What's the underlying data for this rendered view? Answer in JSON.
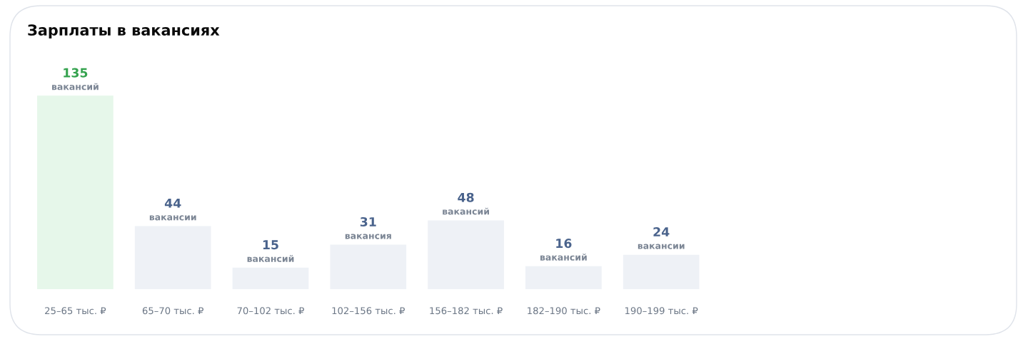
{
  "chart_data": {
    "type": "bar",
    "title": "Зарплаты в вакансиях",
    "categories": [
      "25–65 тыс. ₽",
      "65–70 тыс. ₽",
      "70–102 тыс. ₽",
      "102–156 тыс. ₽",
      "156–182 тыс. ₽",
      "182–190 тыс. ₽",
      "190–199 тыс. ₽",
      null,
      null,
      null
    ],
    "values": [
      135,
      44,
      15,
      31,
      48,
      16,
      24,
      null,
      null,
      null
    ],
    "value_labels": [
      "135\nвакансий",
      "44\nвакансии",
      "15\nвакансий",
      "31\nвакансия",
      "48\nвакансий",
      "16\nвакансий",
      "24\nвакансии",
      null,
      null,
      null
    ],
    "colors": [
      "#e6f7ea",
      "#eef1f6",
      "#eef1f6",
      "#eef1f6",
      "#eef1f6",
      "#eef1f6",
      "#eef1f6",
      "#eef1f6",
      "#eef1f6",
      "#eef1f6"
    ],
    "grid": false,
    "legend": false
  }
}
